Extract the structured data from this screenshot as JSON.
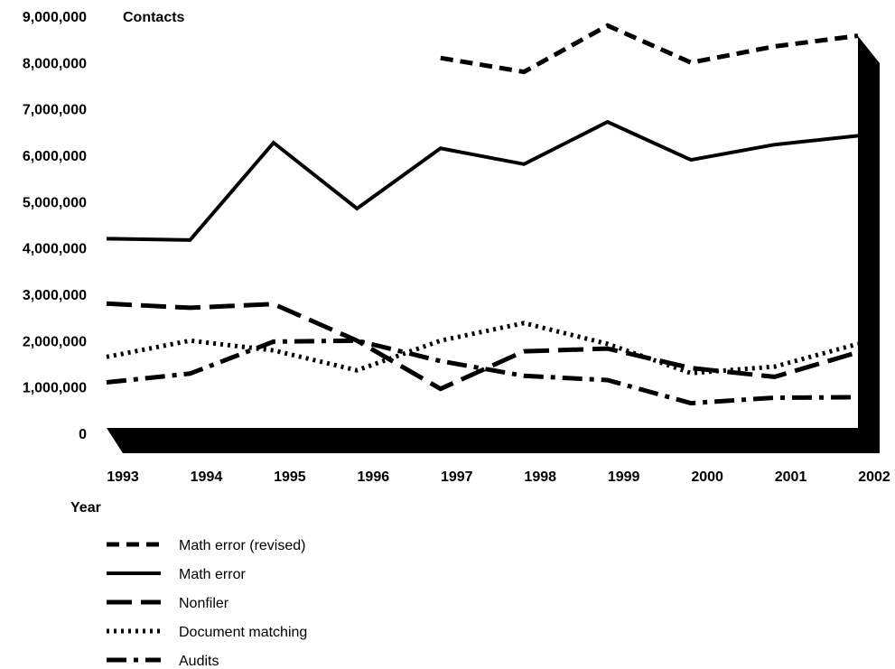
{
  "chart_data": {
    "type": "line",
    "title": "",
    "ylabel": "Contacts",
    "xlabel": "Year",
    "ylim": [
      0,
      9000000
    ],
    "yticks": [
      0,
      1000000,
      2000000,
      3000000,
      4000000,
      5000000,
      6000000,
      7000000,
      8000000,
      9000000
    ],
    "ytick_labels": [
      "0",
      "1,000,000",
      "2,000,000",
      "3,000,000",
      "4,000,000",
      "5,000,000",
      "6,000,000",
      "7,000,000",
      "8,000,000",
      "9,000,000"
    ],
    "categories": [
      "1993",
      "1994",
      "1995",
      "1996",
      "1997",
      "1998",
      "1999",
      "2000",
      "2001",
      "2002"
    ],
    "grid": false,
    "legend_position": "bottom-left",
    "color": "#000000",
    "series": [
      {
        "name": "Math error (revised)",
        "dash": "dashed",
        "values": [
          null,
          null,
          null,
          null,
          8100000,
          7800000,
          8800000,
          8000000,
          8350000,
          8580000
        ]
      },
      {
        "name": "Math error",
        "dash": "solid",
        "values": [
          4200000,
          4170000,
          6270000,
          4850000,
          6150000,
          5810000,
          6720000,
          5900000,
          6230000,
          6420000
        ]
      },
      {
        "name": "Nonfiler",
        "dash": "long-dash",
        "values": [
          2800000,
          2710000,
          2790000,
          2000000,
          960000,
          1770000,
          1830000,
          1410000,
          1220000,
          1750000
        ]
      },
      {
        "name": "Document matching",
        "dash": "dotted",
        "values": [
          1650000,
          2000000,
          1790000,
          1360000,
          2000000,
          2380000,
          1930000,
          1300000,
          1440000,
          1930000
        ]
      },
      {
        "name": "Audits",
        "dash": "dash-dot",
        "values": [
          1100000,
          1290000,
          1980000,
          2000000,
          1560000,
          1240000,
          1150000,
          650000,
          770000,
          780000
        ]
      }
    ]
  }
}
